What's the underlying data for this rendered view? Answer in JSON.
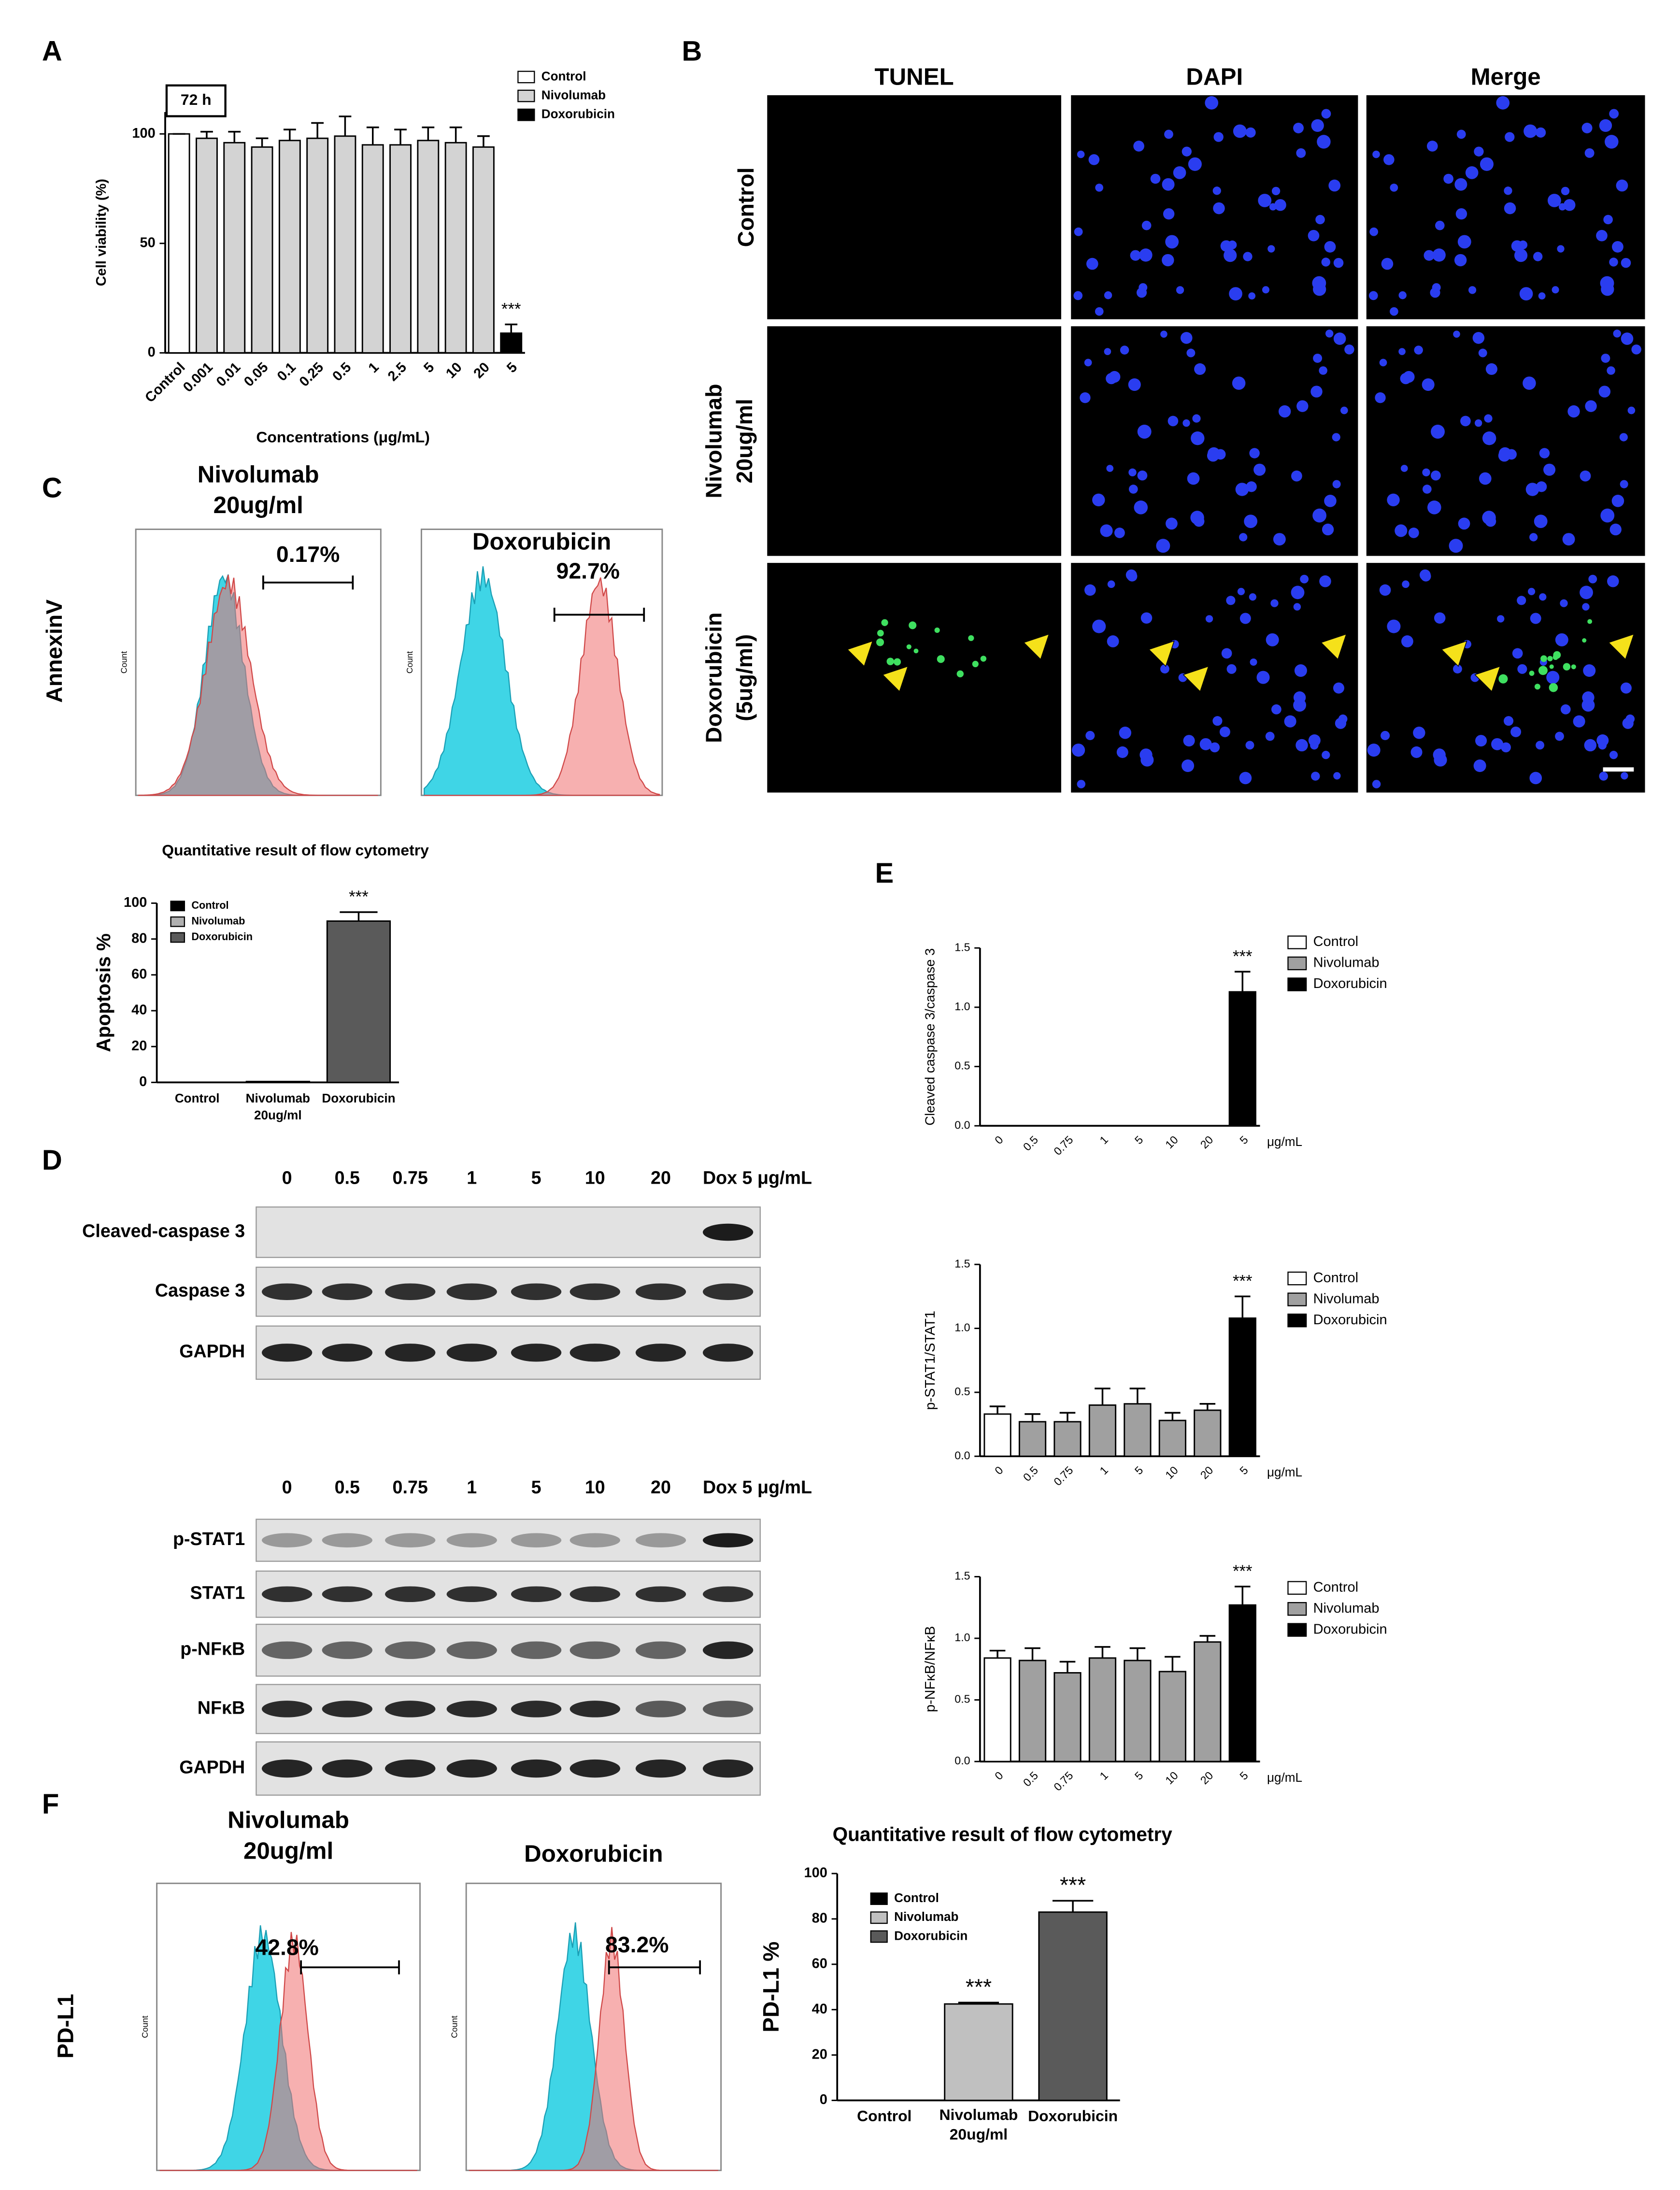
{
  "panel_labels": [
    "A",
    "B",
    "C",
    "D",
    "E",
    "F"
  ],
  "chart_data": [
    {
      "type": "bar",
      "title": "72 h",
      "ylabel": "Cell viability (%)",
      "xlabel": "Concentrations (μg/mL)",
      "categories": [
        "Control",
        "0.001",
        "0.01",
        "0.05",
        "0.1",
        "0.25",
        "0.5",
        "1",
        "2.5",
        "5",
        "10",
        "20",
        "5"
      ],
      "series": [
        {
          "name": "Control",
          "color": "#ffffff",
          "values": [
            100,
            null,
            null,
            null,
            null,
            null,
            null,
            null,
            null,
            null,
            null,
            null,
            null
          ],
          "errors": [
            0,
            null,
            null,
            null,
            null,
            null,
            null,
            null,
            null,
            null,
            null,
            null,
            null
          ]
        },
        {
          "name": "Nivolumab",
          "color": "#d3d3d3",
          "values": [
            null,
            98,
            96,
            94,
            97,
            98,
            99,
            95,
            95,
            97,
            96,
            94,
            null
          ],
          "errors": [
            null,
            3,
            5,
            4,
            5,
            7,
            9,
            8,
            7,
            6,
            7,
            5,
            null
          ]
        },
        {
          "name": "Doxorubicin",
          "color": "#000000",
          "values": [
            null,
            null,
            null,
            null,
            null,
            null,
            null,
            null,
            null,
            null,
            null,
            null,
            9
          ],
          "errors": [
            null,
            null,
            null,
            null,
            null,
            null,
            null,
            null,
            null,
            null,
            null,
            null,
            4
          ]
        }
      ],
      "annotations": [
        "***"
      ],
      "ylim": [
        0,
        110
      ],
      "yticks": [
        0,
        50,
        100
      ]
    },
    {
      "type": "bar",
      "title": "Quantitative result of flow cytometry",
      "ylabel": "Apoptosis %",
      "categories": [
        "Control",
        [
          "Nivolumab",
          "20ug/ml"
        ],
        "Doxorubicin"
      ],
      "series": [
        {
          "name": "Control",
          "color": "#000000",
          "values": [
            0,
            null,
            null
          ]
        },
        {
          "name": "Nivolumab",
          "color": "#b0b0b0",
          "values": [
            null,
            0.5,
            null
          ]
        },
        {
          "name": "Doxorubicin",
          "color": "#5a5a5a",
          "values": [
            null,
            null,
            90
          ],
          "errors": [
            null,
            null,
            5
          ]
        }
      ],
      "annotations": [
        "***"
      ],
      "ylim": [
        0,
        100
      ],
      "yticks": [
        0,
        20,
        40,
        60,
        80,
        100
      ]
    },
    {
      "type": "bar",
      "ylabel": "Cleaved caspase 3/caspase 3",
      "xlabel": "μg/mL",
      "categories": [
        "0",
        "0.5",
        "0.75",
        "1",
        "5",
        "10",
        "20",
        "5"
      ],
      "series": [
        {
          "name": "Control",
          "color": "#ffffff",
          "values": [
            0,
            null,
            null,
            null,
            null,
            null,
            null,
            null
          ]
        },
        {
          "name": "Nivolumab",
          "color": "#a0a0a0",
          "values": [
            null,
            0,
            0,
            0,
            0,
            0,
            0,
            null
          ]
        },
        {
          "name": "Doxorubicin",
          "color": "#000000",
          "values": [
            null,
            null,
            null,
            null,
            null,
            null,
            null,
            1.13
          ],
          "errors": [
            null,
            null,
            null,
            null,
            null,
            null,
            null,
            0.17
          ]
        }
      ],
      "annotations": [
        "***"
      ],
      "ylim": [
        0,
        1.5
      ],
      "yticks": [
        {
          "value": 0,
          "label": "0.0"
        },
        0.5,
        {
          "value": 1,
          "label": "1.0"
        },
        1.5
      ]
    },
    {
      "type": "bar",
      "ylabel": "p-STAT1/STAT1",
      "xlabel": "μg/mL",
      "categories": [
        "0",
        "0.5",
        "0.75",
        "1",
        "5",
        "10",
        "20",
        "5"
      ],
      "series": [
        {
          "name": "Control",
          "color": "#ffffff",
          "values": [
            0.33,
            null,
            null,
            null,
            null,
            null,
            null,
            null
          ],
          "errors": [
            0.06,
            null,
            null,
            null,
            null,
            null,
            null,
            null
          ]
        },
        {
          "name": "Nivolumab",
          "color": "#a0a0a0",
          "values": [
            null,
            0.27,
            0.27,
            0.4,
            0.41,
            0.28,
            0.36,
            null
          ],
          "errors": [
            null,
            0.06,
            0.07,
            0.13,
            0.12,
            0.06,
            0.05,
            null
          ]
        },
        {
          "name": "Doxorubicin",
          "color": "#000000",
          "values": [
            null,
            null,
            null,
            null,
            null,
            null,
            null,
            1.08
          ],
          "errors": [
            null,
            null,
            null,
            null,
            null,
            null,
            null,
            0.17
          ]
        }
      ],
      "annotations": [
        "***"
      ],
      "ylim": [
        0,
        1.5
      ],
      "yticks": [
        {
          "value": 0,
          "label": "0.0"
        },
        0.5,
        {
          "value": 1,
          "label": "1.0"
        },
        1.5
      ]
    },
    {
      "type": "bar",
      "ylabel": "p-NFκB/NFκB",
      "xlabel": "μg/mL",
      "categories": [
        "0",
        "0.5",
        "0.75",
        "1",
        "5",
        "10",
        "20",
        "5"
      ],
      "series": [
        {
          "name": "Control",
          "color": "#ffffff",
          "values": [
            0.84,
            null,
            null,
            null,
            null,
            null,
            null,
            null
          ],
          "errors": [
            0.06,
            null,
            null,
            null,
            null,
            null,
            null,
            null
          ]
        },
        {
          "name": "Nivolumab",
          "color": "#a0a0a0",
          "values": [
            null,
            0.82,
            0.72,
            0.84,
            0.82,
            0.73,
            0.97,
            null
          ],
          "errors": [
            null,
            0.1,
            0.09,
            0.09,
            0.1,
            0.12,
            0.05,
            null
          ]
        },
        {
          "name": "Doxorubicin",
          "color": "#000000",
          "values": [
            null,
            null,
            null,
            null,
            null,
            null,
            null,
            1.27
          ],
          "errors": [
            null,
            null,
            null,
            null,
            null,
            null,
            null,
            0.15
          ]
        }
      ],
      "annotations": [
        "***"
      ],
      "ylim": [
        0,
        1.5
      ],
      "yticks": [
        {
          "value": 0,
          "label": "0.0"
        },
        0.5,
        {
          "value": 1,
          "label": "1.0"
        },
        1.5
      ]
    },
    {
      "type": "bar",
      "title": "Quantitative result of flow cytometry",
      "ylabel": "PD-L1 %",
      "categories": [
        "Control",
        [
          "Nivolumab",
          "20ug/ml"
        ],
        "Doxorubicin"
      ],
      "series": [
        {
          "name": "Control",
          "color": "#000000",
          "values": [
            0,
            null,
            null
          ]
        },
        {
          "name": "Nivolumab",
          "color": "#c0c0c0",
          "values": [
            null,
            42.5,
            null
          ],
          "errors": [
            null,
            0.6,
            null
          ]
        },
        {
          "name": "Doxorubicin",
          "color": "#5a5a5a",
          "values": [
            null,
            null,
            83
          ],
          "errors": [
            null,
            null,
            5
          ]
        }
      ],
      "annotations": [
        "***",
        "***"
      ],
      "ylim": [
        0,
        100
      ],
      "yticks": [
        0,
        20,
        40,
        60,
        80,
        100
      ]
    }
  ],
  "microscopy": {
    "columns": [
      "TUNEL",
      "DAPI",
      "Merge"
    ],
    "rows": [
      [
        "Control"
      ],
      [
        "Nivolumab",
        "20ug/ml"
      ],
      [
        "Doxorubicin",
        "(5ug/ml)"
      ]
    ]
  },
  "flow_c": {
    "row_label": "AnnexinV",
    "y_axis_label": "Count",
    "panels": [
      {
        "title": [
          "Nivolumab",
          "20ug/ml"
        ],
        "percent": "0.17%"
      },
      {
        "title": [
          "Doxorubicin"
        ],
        "percent": "92.7%"
      }
    ]
  },
  "western_blot": {
    "lanes": [
      "0",
      "0.5",
      "0.75",
      "1",
      "5",
      "10",
      "20",
      "Dox 5 μg/mL"
    ],
    "group_1": [
      "Cleaved-caspase 3",
      "Caspase 3",
      "GAPDH"
    ],
    "group_2": [
      "p-STAT1",
      "STAT1",
      "p-NFκB",
      "NFκB",
      "GAPDH"
    ]
  },
  "flow_f": {
    "row_label": "PD-L1",
    "y_axis_label": "Count",
    "panels": [
      {
        "title": [
          "Nivolumab",
          "20ug/ml"
        ],
        "percent": "42.8%"
      },
      {
        "title": [
          "Doxorubicin"
        ],
        "percent": "83.2%"
      }
    ]
  }
}
